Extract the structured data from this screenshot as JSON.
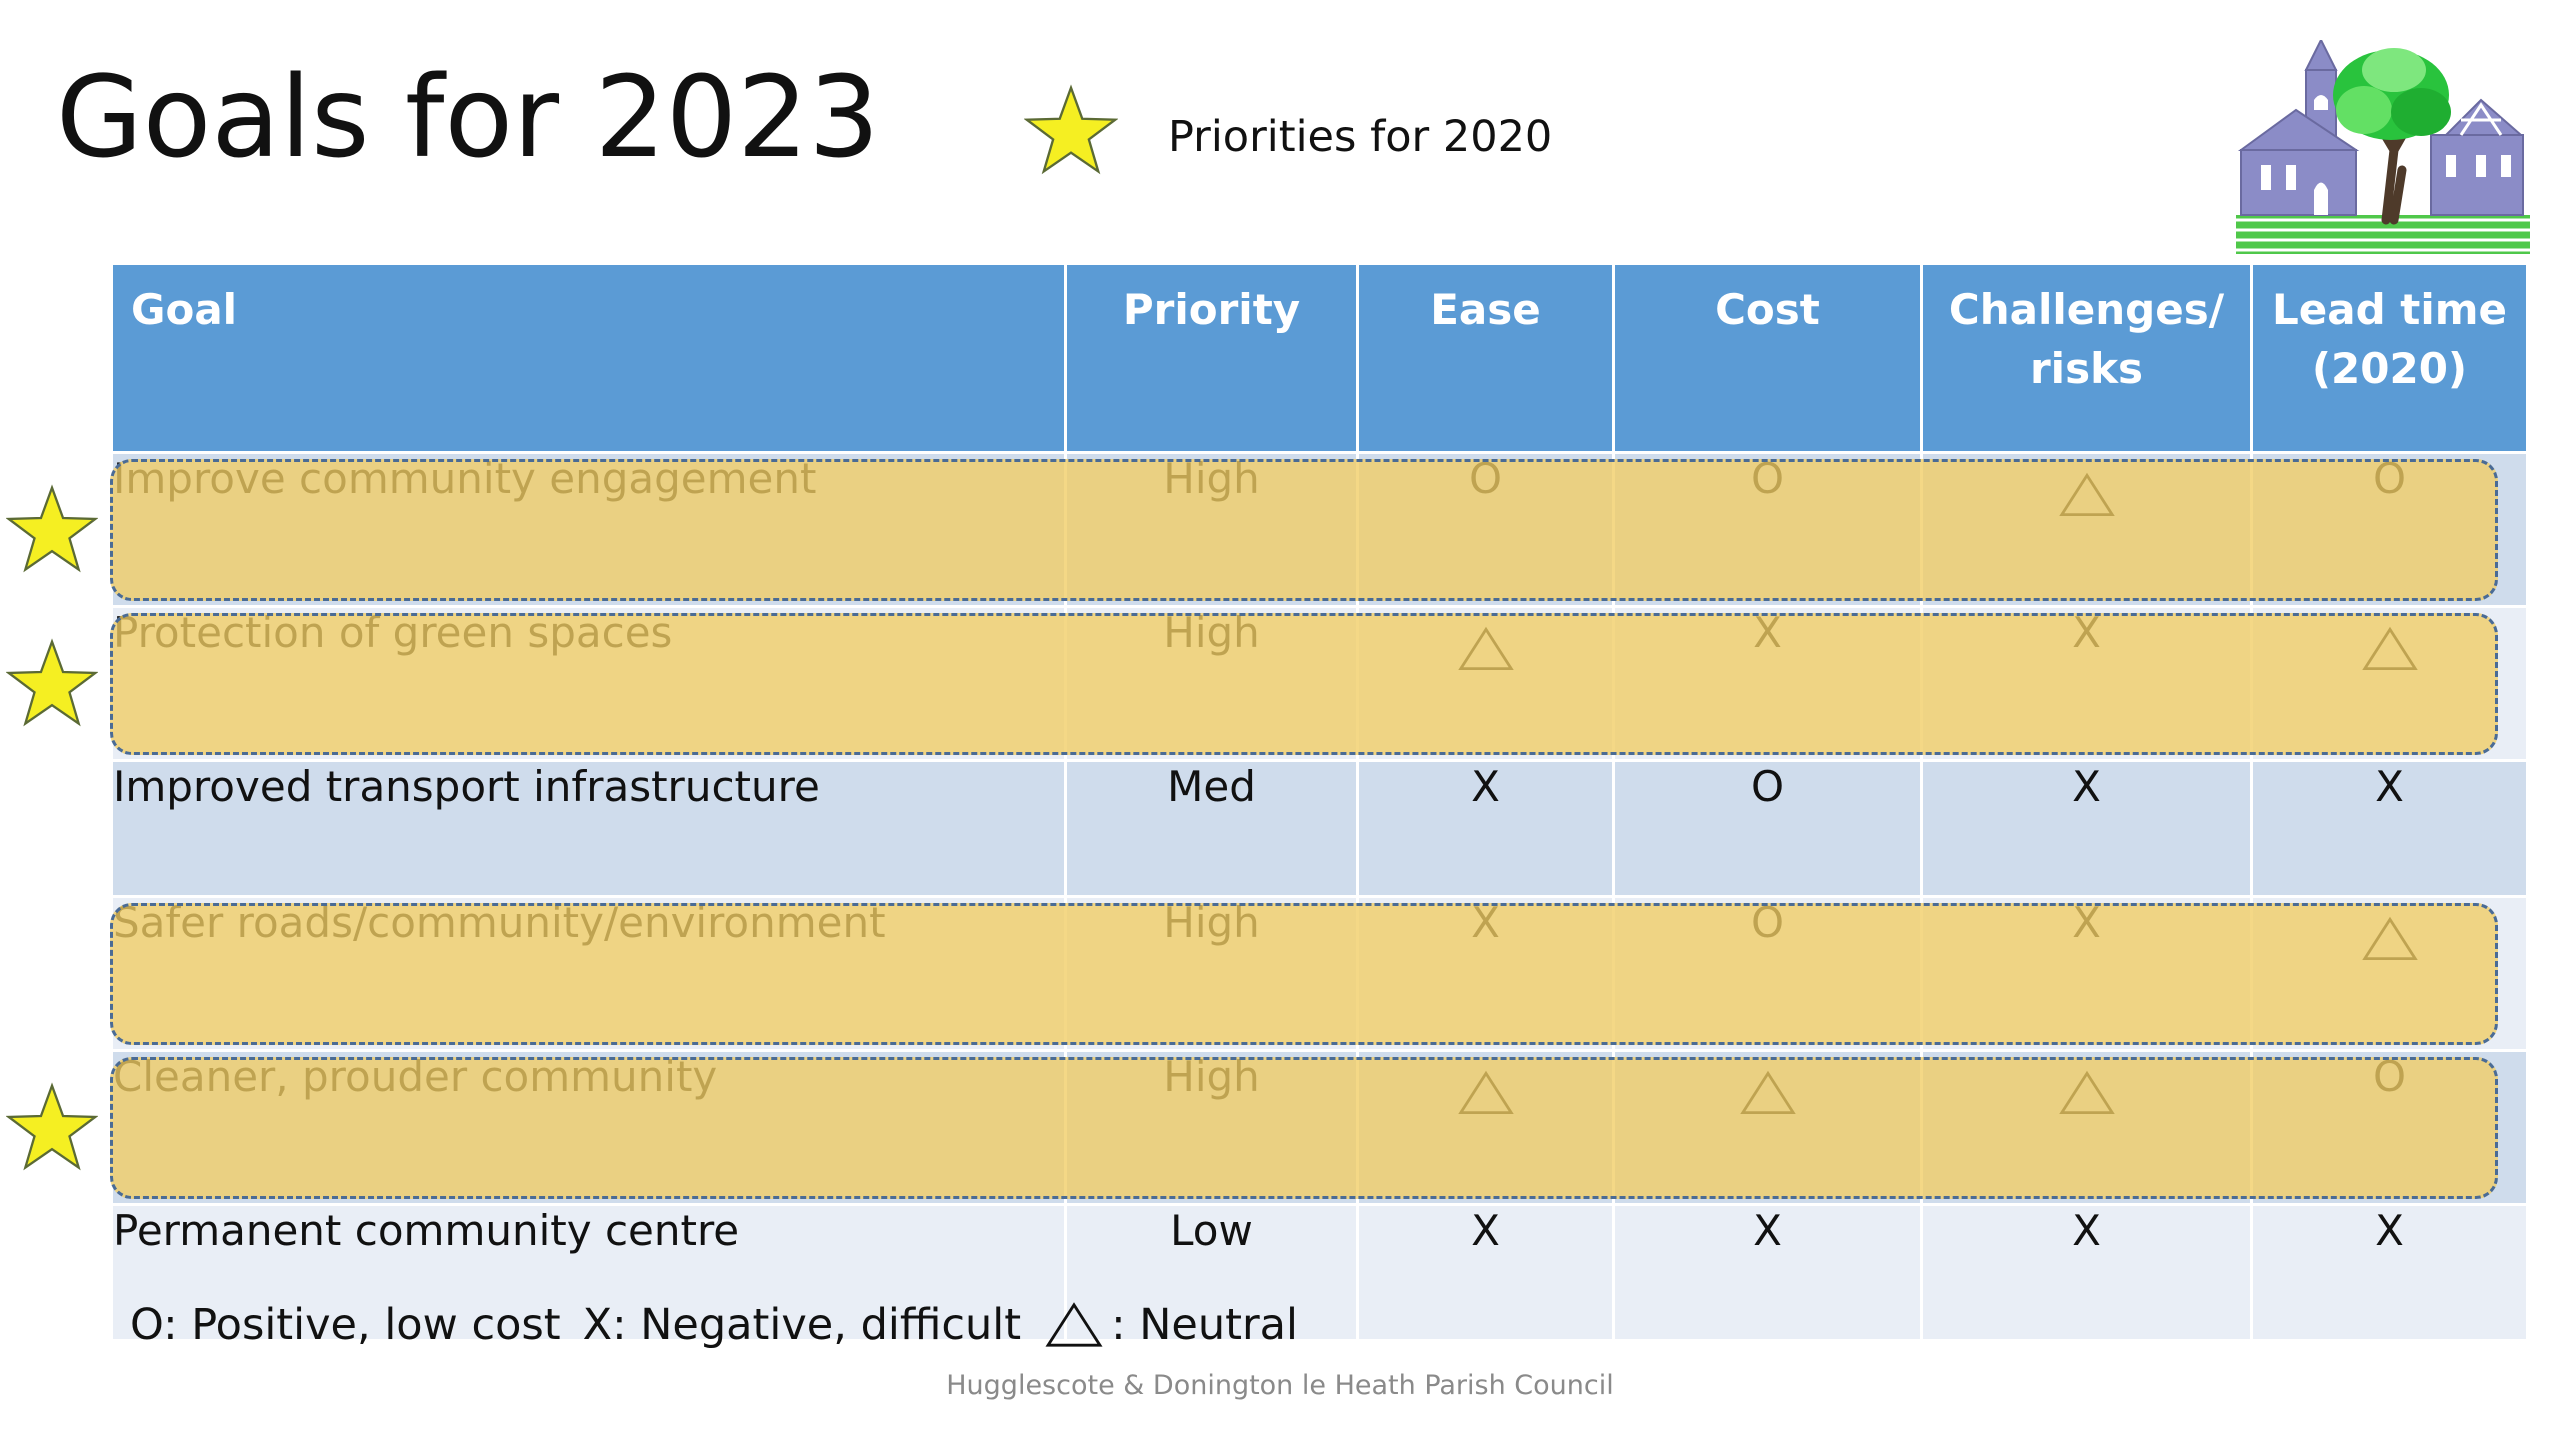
{
  "title": "Goals for 2023",
  "legend": {
    "star_label": "Priorities for 2020",
    "star_icon": "star-icon"
  },
  "table": {
    "headers": [
      "Goal",
      "Priority",
      "Ease",
      "Cost",
      "Challenges/ risks",
      "Lead time (2020)"
    ],
    "rows": [
      {
        "goal": "Improve community engagement",
        "priority": "High",
        "ease": "O",
        "cost": "O",
        "challenges": "triangle",
        "lead_time": "O",
        "starred": true,
        "highlighted": true
      },
      {
        "goal": "Protection of green spaces",
        "priority": "High",
        "ease": "triangle",
        "cost": "X",
        "challenges": "X",
        "lead_time": "triangle",
        "starred": true,
        "highlighted": true
      },
      {
        "goal": "Improved transport infrastructure",
        "priority": "Med",
        "ease": "X",
        "cost": "O",
        "challenges": "X",
        "lead_time": "X",
        "starred": false,
        "highlighted": false
      },
      {
        "goal": "Safer roads/community/environment",
        "priority": "High",
        "ease": "X",
        "cost": "O",
        "challenges": "X",
        "lead_time": "triangle",
        "starred": false,
        "highlighted": true
      },
      {
        "goal": "Cleaner, prouder community",
        "priority": "High",
        "ease": "triangle",
        "cost": "triangle",
        "challenges": "triangle",
        "lead_time": "O",
        "starred": true,
        "highlighted": true
      },
      {
        "goal": "Permanent community centre",
        "priority": "Low",
        "ease": "X",
        "cost": "X",
        "challenges": "X",
        "lead_time": "X",
        "starred": false,
        "highlighted": false
      }
    ]
  },
  "key": {
    "positive": "O: Positive, low cost",
    "negative": "X: Negative, difficult",
    "neutral": ": Neutral"
  },
  "footer": "Hugglescote & Donington le Heath Parish Council",
  "colors": {
    "header": "#5b9bd5",
    "band_dark": "#cfdcec",
    "band_light": "#e9eef6",
    "highlight": "#f1cd64",
    "star": "#f5ef22"
  }
}
